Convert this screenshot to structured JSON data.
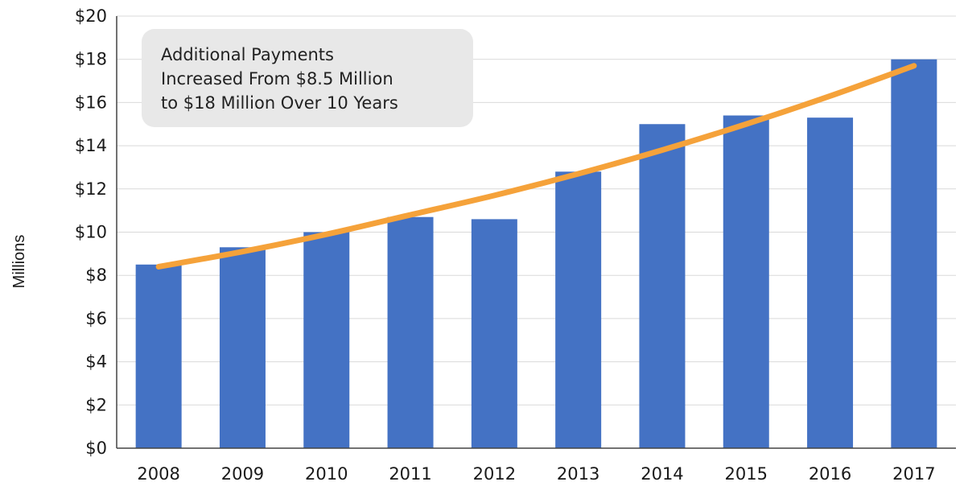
{
  "chart_data": {
    "type": "bar",
    "categories": [
      "2008",
      "2009",
      "2010",
      "2011",
      "2012",
      "2013",
      "2014",
      "2015",
      "2016",
      "2017"
    ],
    "values": [
      8.5,
      9.3,
      10.0,
      10.7,
      10.6,
      12.8,
      15.0,
      15.4,
      15.3,
      18.0
    ],
    "ylabel": "Millions",
    "ylim": [
      0,
      20
    ],
    "yticks": [
      0,
      2,
      4,
      6,
      8,
      10,
      12,
      14,
      16,
      18,
      20
    ],
    "ytick_labels": [
      "$0",
      "$2",
      "$4",
      "$6",
      "$8",
      "$10",
      "$12",
      "$14",
      "$16",
      "$18",
      "$20"
    ],
    "trend_line": {
      "values": [
        8.4,
        9.1,
        9.9,
        10.8,
        11.7,
        12.7,
        13.8,
        15.0,
        16.3,
        17.7
      ]
    },
    "annotation": [
      "Additional Payments",
      "Increased From $8.5 Million",
      "to $18 Million Over 10 Years"
    ],
    "grid": true,
    "colors": {
      "bar": "#4472c4",
      "trend": "#f5a23a",
      "grid": "#d9d9d9",
      "note_bg": "#e8e8e8"
    }
  }
}
